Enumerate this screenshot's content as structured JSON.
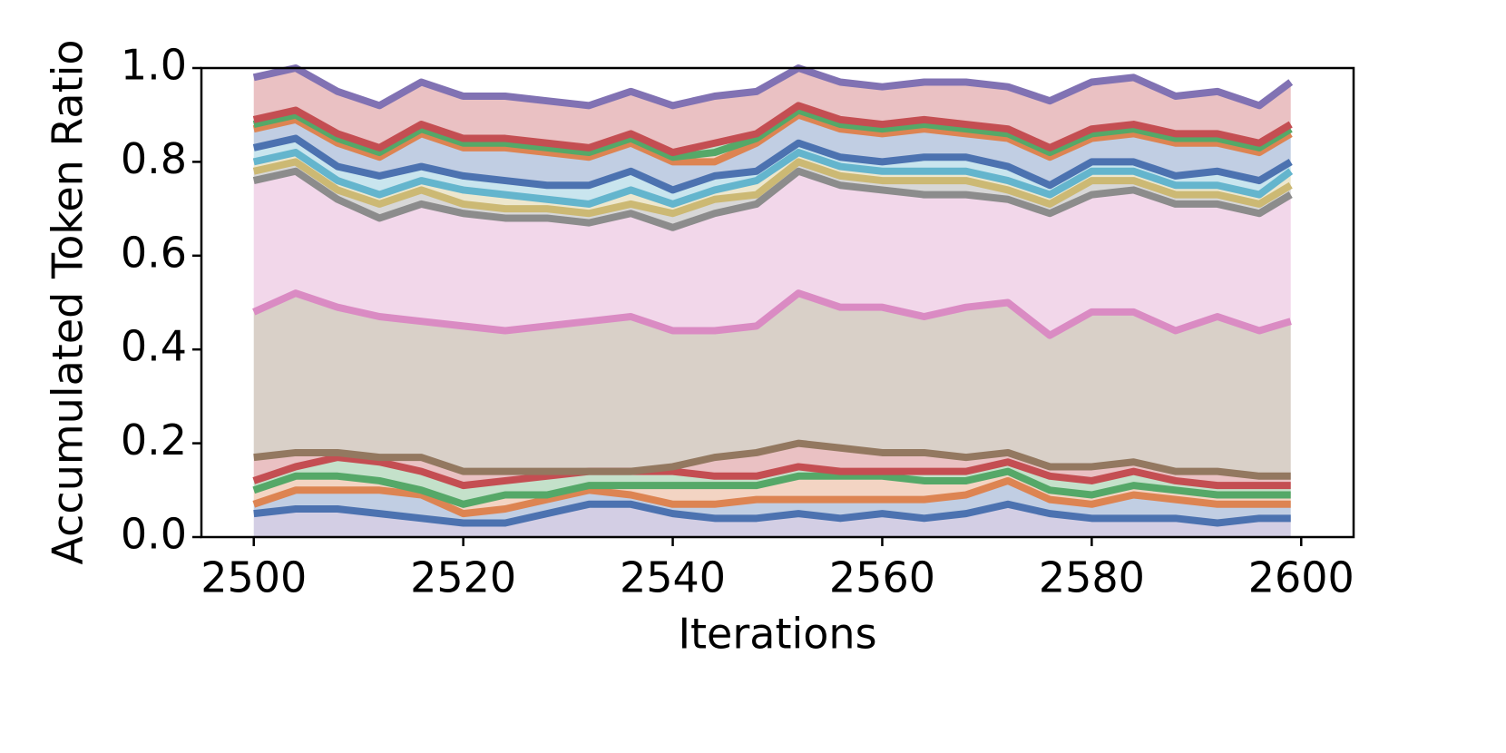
{
  "chart_data": {
    "type": "stacked_line",
    "x_label": "Iterations",
    "y_label": "Accumulated Token Ratio",
    "x": [
      2500,
      2504,
      2508,
      2512,
      2516,
      2520,
      2524,
      2528,
      2532,
      2536,
      2540,
      2544,
      2548,
      2552,
      2556,
      2560,
      2564,
      2568,
      2572,
      2576,
      2580,
      2584,
      2588,
      2592,
      2596,
      2599
    ],
    "series": [
      {
        "color": "#4c72b0",
        "values": [
          0.05,
          0.06,
          0.06,
          0.05,
          0.04,
          0.03,
          0.03,
          0.05,
          0.07,
          0.07,
          0.05,
          0.04,
          0.04,
          0.05,
          0.04,
          0.05,
          0.04,
          0.05,
          0.07,
          0.05,
          0.04,
          0.04,
          0.04,
          0.03,
          0.04,
          0.04
        ]
      },
      {
        "color": "#dd8452",
        "values": [
          0.02,
          0.04,
          0.04,
          0.05,
          0.05,
          0.02,
          0.03,
          0.03,
          0.03,
          0.02,
          0.02,
          0.03,
          0.04,
          0.03,
          0.04,
          0.03,
          0.04,
          0.04,
          0.05,
          0.03,
          0.03,
          0.05,
          0.04,
          0.04,
          0.03,
          0.03
        ]
      },
      {
        "color": "#55a868",
        "values": [
          0.03,
          0.03,
          0.03,
          0.02,
          0.01,
          0.02,
          0.03,
          0.01,
          0.01,
          0.02,
          0.04,
          0.04,
          0.03,
          0.05,
          0.05,
          0.05,
          0.04,
          0.03,
          0.02,
          0.02,
          0.02,
          0.02,
          0.02,
          0.02,
          0.02,
          0.02
        ]
      },
      {
        "color": "#c44e52",
        "values": [
          0.02,
          0.02,
          0.04,
          0.04,
          0.04,
          0.04,
          0.03,
          0.04,
          0.03,
          0.03,
          0.03,
          0.02,
          0.02,
          0.02,
          0.01,
          0.01,
          0.02,
          0.02,
          0.02,
          0.03,
          0.03,
          0.03,
          0.02,
          0.02,
          0.02,
          0.02
        ]
      },
      {
        "color": "#937860",
        "values": [
          0.05,
          0.03,
          0.01,
          0.01,
          0.03,
          0.03,
          0.02,
          0.01,
          0.0,
          0.0,
          0.01,
          0.04,
          0.05,
          0.05,
          0.05,
          0.04,
          0.04,
          0.03,
          0.02,
          0.02,
          0.03,
          0.02,
          0.02,
          0.03,
          0.02,
          0.02
        ]
      },
      {
        "color": "#da8bc3",
        "values": [
          0.31,
          0.34,
          0.31,
          0.3,
          0.29,
          0.31,
          0.3,
          0.31,
          0.32,
          0.33,
          0.29,
          0.27,
          0.27,
          0.32,
          0.3,
          0.31,
          0.29,
          0.32,
          0.32,
          0.28,
          0.33,
          0.32,
          0.3,
          0.33,
          0.31,
          0.33
        ]
      },
      {
        "color": "#8c8c8c",
        "values": [
          0.28,
          0.26,
          0.23,
          0.21,
          0.25,
          0.24,
          0.24,
          0.23,
          0.21,
          0.22,
          0.22,
          0.25,
          0.26,
          0.26,
          0.26,
          0.25,
          0.26,
          0.24,
          0.22,
          0.26,
          0.25,
          0.26,
          0.27,
          0.24,
          0.25,
          0.27
        ]
      },
      {
        "color": "#ccb974",
        "values": [
          0.02,
          0.02,
          0.02,
          0.03,
          0.03,
          0.02,
          0.02,
          0.02,
          0.02,
          0.02,
          0.03,
          0.03,
          0.02,
          0.02,
          0.02,
          0.02,
          0.03,
          0.03,
          0.02,
          0.02,
          0.03,
          0.02,
          0.02,
          0.02,
          0.02,
          0.02
        ]
      },
      {
        "color": "#64b5cd",
        "values": [
          0.02,
          0.02,
          0.02,
          0.02,
          0.02,
          0.03,
          0.03,
          0.02,
          0.02,
          0.03,
          0.02,
          0.02,
          0.03,
          0.02,
          0.02,
          0.02,
          0.02,
          0.02,
          0.02,
          0.02,
          0.02,
          0.02,
          0.02,
          0.02,
          0.02,
          0.03
        ]
      },
      {
        "color": "#4c72b0",
        "values": [
          0.03,
          0.03,
          0.03,
          0.04,
          0.03,
          0.03,
          0.03,
          0.03,
          0.04,
          0.04,
          0.03,
          0.03,
          0.02,
          0.02,
          0.02,
          0.02,
          0.03,
          0.03,
          0.03,
          0.02,
          0.02,
          0.02,
          0.02,
          0.03,
          0.03,
          0.02
        ]
      },
      {
        "color": "#dd8452",
        "values": [
          0.04,
          0.04,
          0.05,
          0.04,
          0.07,
          0.06,
          0.07,
          0.07,
          0.06,
          0.06,
          0.06,
          0.03,
          0.06,
          0.06,
          0.06,
          0.06,
          0.06,
          0.05,
          0.06,
          0.06,
          0.05,
          0.06,
          0.07,
          0.06,
          0.06,
          0.06
        ]
      },
      {
        "color": "#55a868",
        "values": [
          0.01,
          0.01,
          0.01,
          0.01,
          0.01,
          0.01,
          0.01,
          0.01,
          0.01,
          0.01,
          0.01,
          0.02,
          0.01,
          0.01,
          0.01,
          0.01,
          0.01,
          0.01,
          0.01,
          0.01,
          0.01,
          0.01,
          0.01,
          0.01,
          0.01,
          0.01
        ]
      },
      {
        "color": "#c44e52",
        "values": [
          0.01,
          0.01,
          0.01,
          0.01,
          0.01,
          0.01,
          0.01,
          0.01,
          0.01,
          0.01,
          0.01,
          0.02,
          0.01,
          0.01,
          0.01,
          0.01,
          0.01,
          0.01,
          0.01,
          0.01,
          0.01,
          0.01,
          0.01,
          0.01,
          0.01,
          0.01
        ]
      },
      {
        "color": "#8172b3",
        "values": [
          0.09,
          0.09,
          0.09,
          0.09,
          0.09,
          0.09,
          0.09,
          0.09,
          0.09,
          0.09,
          0.1,
          0.1,
          0.09,
          0.08,
          0.08,
          0.08,
          0.08,
          0.09,
          0.09,
          0.1,
          0.1,
          0.1,
          0.08,
          0.09,
          0.08,
          0.09
        ]
      }
    ],
    "xlim": [
      2495,
      2605
    ],
    "ylim": [
      0,
      1
    ],
    "xticks": [
      2500,
      2520,
      2540,
      2560,
      2580,
      2600
    ],
    "yticks": [
      {
        "value": 0,
        "label": "0.0"
      },
      {
        "value": 0.2,
        "label": "0.2"
      },
      {
        "value": 0.4,
        "label": "0.4"
      },
      {
        "value": 0.6,
        "label": "0.6"
      },
      {
        "value": 0.8,
        "label": "0.8"
      },
      {
        "value": 1,
        "label": "1.0"
      }
    ]
  }
}
